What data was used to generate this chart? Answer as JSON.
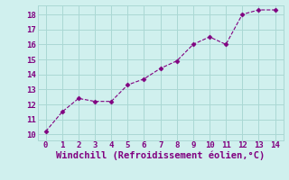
{
  "x": [
    0,
    1,
    2,
    3,
    4,
    5,
    6,
    7,
    8,
    9,
    10,
    11,
    12,
    13,
    14
  ],
  "y": [
    10.2,
    11.5,
    12.4,
    12.2,
    12.2,
    13.3,
    13.7,
    14.4,
    14.9,
    16.0,
    16.5,
    16.0,
    18.0,
    18.3,
    18.3
  ],
  "line_color": "#800080",
  "marker": "D",
  "marker_size": 2.5,
  "bg_color": "#d0f0ee",
  "grid_color": "#aad8d4",
  "tick_color": "#800080",
  "xlabel": "Windchill (Refroidissement éolien,°C)",
  "xlabel_color": "#800080",
  "ylabel_ticks": [
    10,
    11,
    12,
    13,
    14,
    15,
    16,
    17,
    18
  ],
  "xlim": [
    -0.5,
    14.5
  ],
  "ylim": [
    9.6,
    18.6
  ],
  "xticks": [
    0,
    1,
    2,
    3,
    4,
    5,
    6,
    7,
    8,
    9,
    10,
    11,
    12,
    13,
    14
  ],
  "font_size": 6.5,
  "label_font_size": 7.5,
  "line_width": 0.8
}
